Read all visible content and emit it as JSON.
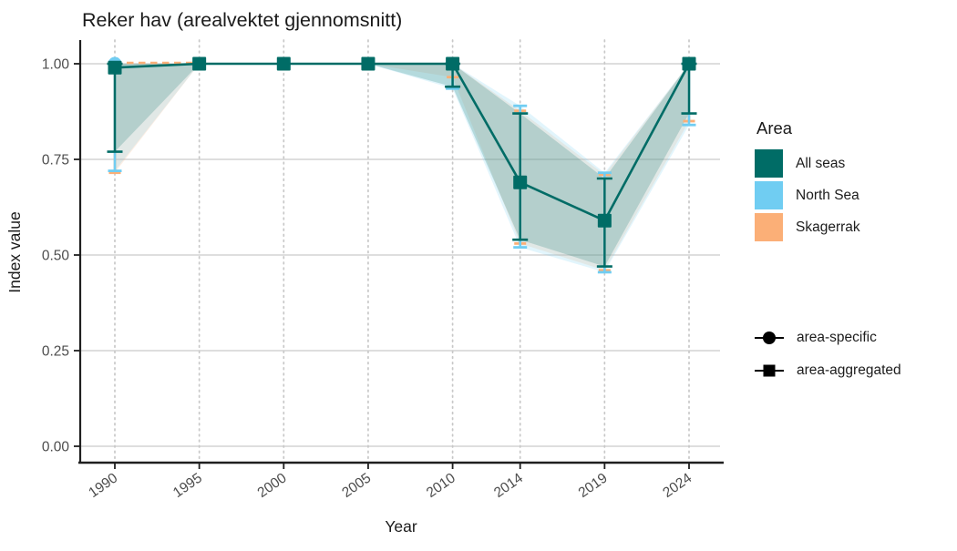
{
  "chart_data": {
    "type": "line",
    "title": "Reker hav (arealvektet gjennomsnitt)",
    "xlabel": "Year",
    "ylabel": "Index value",
    "x_ticks": [
      1990,
      1995,
      2000,
      2005,
      2010,
      2014,
      2019,
      2024
    ],
    "y_ticks": [
      0,
      0.25,
      0.5,
      0.75,
      1.0
    ],
    "y_tick_labels": [
      "0.00",
      "0.25",
      "0.50",
      "0.75",
      "1.00"
    ],
    "ylim": [
      0,
      1.05
    ],
    "grid": {
      "horizontal": "solid",
      "vertical": "dotted"
    },
    "legend_position": "right",
    "series": [
      {
        "name": "All seas",
        "role": "area-aggregated",
        "marker": "square",
        "line": "solid",
        "color": "#006c66",
        "x": [
          1990,
          1995,
          2000,
          2005,
          2010,
          2014,
          2019,
          2024
        ],
        "y": [
          0.99,
          1.0,
          1.0,
          1.0,
          1.0,
          0.69,
          0.59,
          1.0
        ],
        "ci_lower": [
          0.77,
          1.0,
          1.0,
          1.0,
          0.94,
          0.54,
          0.47,
          0.87
        ],
        "ci_upper": [
          1.0,
          1.0,
          1.0,
          1.0,
          1.0,
          0.87,
          0.7,
          1.0
        ],
        "errorbar_years": [
          1990,
          2010,
          2014,
          2019,
          2024
        ]
      },
      {
        "name": "North Sea",
        "role": "area-specific",
        "marker": "circle",
        "line": "solid",
        "color": "#70cdf2",
        "points_x": [
          1990,
          2010,
          2024
        ],
        "points_y": [
          1.0,
          1.0,
          1.0
        ],
        "ci_lower": [
          0.72,
          1.0,
          1.0,
          1.0,
          0.935,
          0.52,
          0.455,
          0.84
        ],
        "ci_upper": [
          1.0,
          1.0,
          1.0,
          1.0,
          1.0,
          0.89,
          0.715,
          1.0
        ],
        "errorbar_years": [
          1990,
          2010,
          2014,
          2019,
          2024
        ]
      },
      {
        "name": "Skagerrak",
        "role": "area-specific",
        "marker": "circle",
        "line": "dashed",
        "color": "#fbaf77",
        "dash_segment": {
          "x1": 1990,
          "x2": 1995,
          "y": 1.0
        },
        "ci_lower": [
          0.715,
          1.0,
          1.0,
          1.0,
          0.965,
          0.53,
          0.46,
          0.85
        ],
        "ci_upper": [
          1.0,
          1.0,
          1.0,
          1.0,
          1.0,
          0.877,
          0.71,
          1.0
        ],
        "errorbar_years": [
          1990,
          2010,
          2014,
          2019,
          2024
        ]
      }
    ]
  },
  "legend_area": {
    "title": "Area",
    "items": [
      {
        "label": "All seas",
        "color": "#006c66"
      },
      {
        "label": "North Sea",
        "color": "#70cdf2"
      },
      {
        "label": "Skagerrak",
        "color": "#fbaf77"
      }
    ]
  },
  "legend_shape": {
    "items": [
      {
        "label": "area-specific",
        "shape": "circle"
      },
      {
        "label": "area-aggregated",
        "shape": "square"
      }
    ]
  },
  "style_colors": {
    "axis": "#1f1f1f",
    "tick_label": "#4d4d4d",
    "grid_major": "#d4d4d4",
    "grid_dotted": "#c8c8c8",
    "title_text": "#1b1b1b",
    "ribbon_alpha": 0.2
  }
}
